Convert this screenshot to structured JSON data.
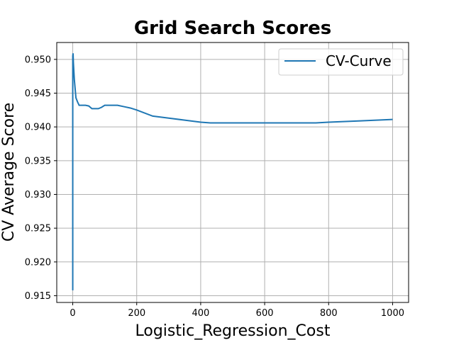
{
  "chart_data": {
    "type": "line",
    "title": "Grid Search Scores",
    "xlabel": "Logistic_Regression_Cost",
    "ylabel": "CV Average Score",
    "xlim": [
      -50,
      1050
    ],
    "ylim": [
      0.914,
      0.9525
    ],
    "xticks": [
      0,
      200,
      400,
      600,
      800,
      1000
    ],
    "yticks": [
      0.915,
      0.92,
      0.925,
      0.93,
      0.935,
      0.94,
      0.945,
      0.95
    ],
    "ytick_labels": [
      "0.915",
      "0.920",
      "0.925",
      "0.930",
      "0.935",
      "0.940",
      "0.945",
      "0.950"
    ],
    "grid": true,
    "legend_position": "top-right",
    "line_color": "#1f77b4",
    "series": [
      {
        "name": "CV-Curve",
        "x": [
          0.001,
          0.01,
          0.1,
          1,
          2,
          5,
          10,
          15,
          20,
          30,
          40,
          50,
          60,
          70,
          80,
          90,
          100,
          120,
          140,
          160,
          180,
          200,
          250,
          300,
          350,
          400,
          430,
          500,
          600,
          700,
          760,
          800,
          900,
          1000
        ],
        "y": [
          0.9158,
          0.9445,
          0.9505,
          0.9509,
          0.9495,
          0.947,
          0.9443,
          0.9437,
          0.9432,
          0.9432,
          0.9432,
          0.9431,
          0.9427,
          0.9427,
          0.9427,
          0.9429,
          0.9432,
          0.9432,
          0.9432,
          0.943,
          0.9428,
          0.9425,
          0.9416,
          0.9413,
          0.941,
          0.9407,
          0.9406,
          0.9406,
          0.9406,
          0.9406,
          0.9406,
          0.9407,
          0.9409,
          0.9411
        ]
      }
    ]
  }
}
